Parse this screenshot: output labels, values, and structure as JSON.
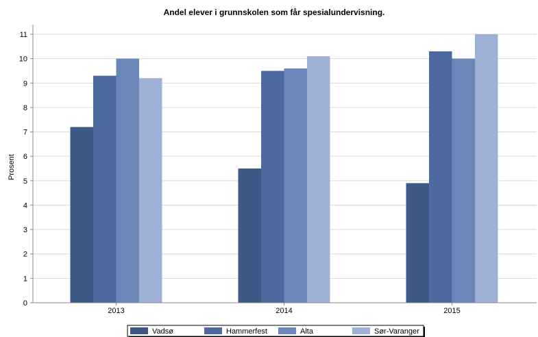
{
  "chart_data": {
    "type": "bar",
    "title": "Andel elever i grunnskolen som får spesialundervisning.",
    "ylabel": "Prosent",
    "xlabel": "",
    "ylim": [
      0,
      11
    ],
    "yticks": [
      0,
      1,
      2,
      3,
      4,
      5,
      6,
      7,
      8,
      9,
      10,
      11
    ],
    "categories": [
      "2013",
      "2014",
      "2015"
    ],
    "grid": true,
    "legend_position": "bottom",
    "series": [
      {
        "name": "Vadsø",
        "color": "#3f5987",
        "values": [
          7.2,
          5.5,
          4.9
        ]
      },
      {
        "name": "Hammerfest",
        "color": "#4c6aa0",
        "values": [
          9.3,
          9.5,
          10.3
        ]
      },
      {
        "name": "Alta",
        "color": "#6b86b8",
        "values": [
          10.0,
          9.6,
          10.0
        ]
      },
      {
        "name": "Sør-Varanger",
        "color": "#9eb0d6",
        "values": [
          9.2,
          10.1,
          11.0
        ]
      }
    ]
  }
}
